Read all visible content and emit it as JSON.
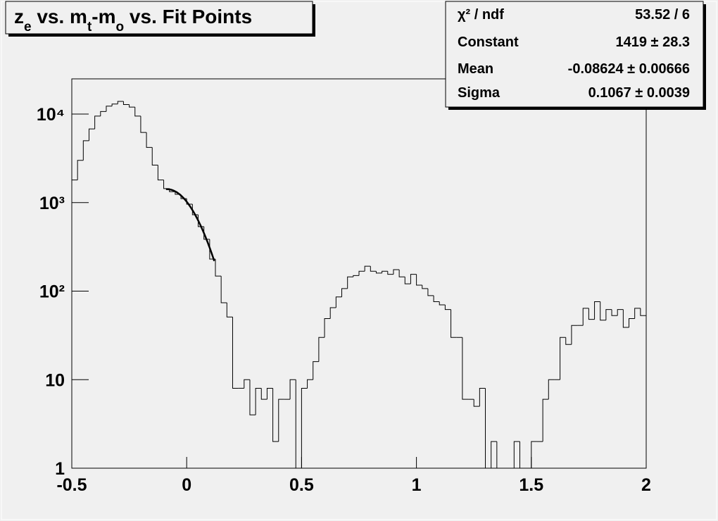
{
  "chart_data": {
    "type": "histogram",
    "title": [
      {
        "text": "z"
      },
      {
        "text": "e",
        "sub": true
      },
      {
        "text": " vs. m"
      },
      {
        "text": "t",
        "sub": true
      },
      {
        "text": "-m"
      },
      {
        "text": "o",
        "sub": true
      },
      {
        "text": " vs. Fit Points"
      }
    ],
    "bins": [
      -0.5,
      -0.475,
      -0.45,
      -0.425,
      -0.4,
      -0.375,
      -0.35,
      -0.325,
      -0.3,
      -0.275,
      -0.25,
      -0.225,
      -0.2,
      -0.175,
      -0.15,
      -0.125,
      -0.1,
      -0.075,
      -0.05,
      -0.025,
      0,
      0.025,
      0.05,
      0.075,
      0.1,
      0.125,
      0.15,
      0.175,
      0.2,
      0.225,
      0.25,
      0.275,
      0.3,
      0.325,
      0.35,
      0.375,
      0.4,
      0.425,
      0.45,
      0.475,
      0.5,
      0.525,
      0.55,
      0.575,
      0.6,
      0.625,
      0.65,
      0.675,
      0.7,
      0.725,
      0.75,
      0.775,
      0.8,
      0.825,
      0.85,
      0.875,
      0.9,
      0.925,
      0.95,
      0.975,
      1,
      1.025,
      1.05,
      1.075,
      1.1,
      1.125,
      1.15,
      1.175,
      1.2,
      1.225,
      1.25,
      1.275,
      1.3,
      1.325,
      1.35,
      1.375,
      1.4,
      1.425,
      1.45,
      1.475,
      1.5,
      1.525,
      1.55,
      1.575,
      1.6,
      1.625,
      1.65,
      1.675,
      1.7,
      1.725,
      1.75,
      1.775,
      1.8,
      1.825,
      1.85,
      1.875,
      1.9,
      1.925,
      1.95,
      1.975,
      2
    ],
    "values": [
      1800,
      3000,
      5000,
      6800,
      9500,
      10700,
      12300,
      13000,
      13900,
      12800,
      12000,
      9500,
      6200,
      4200,
      2650,
      1800,
      1440,
      1330,
      1240,
      1110,
      960,
      730,
      535,
      385,
      230,
      148,
      74,
      51,
      8,
      8,
      10,
      4,
      8,
      6,
      8,
      2,
      6,
      6,
      10,
      0,
      8,
      10,
      16,
      30,
      49,
      65,
      86,
      107,
      145,
      150,
      168,
      191,
      168,
      160,
      168,
      155,
      175,
      145,
      121,
      155,
      117,
      107,
      89,
      76,
      70,
      62,
      30,
      30,
      6,
      6,
      5,
      8,
      0,
      2,
      0,
      0,
      0,
      2,
      0,
      0,
      2,
      2,
      6,
      10,
      10,
      30,
      25,
      41,
      41,
      64,
      48,
      76,
      47,
      62,
      53,
      62,
      39,
      49,
      64,
      53
    ],
    "color": "#000000",
    "xlim": [
      -0.5,
      2
    ],
    "xticks": [
      -0.5,
      0,
      0.5,
      1,
      1.5,
      2
    ],
    "ylim": [
      1,
      25000
    ],
    "yticks": [
      1,
      10,
      {
        "value": 100,
        "label": "10²"
      },
      {
        "value": 1000,
        "label": "10³"
      },
      {
        "value": 10000,
        "label": "10⁴"
      }
    ],
    "log_y": true,
    "fit_range": [
      -0.09,
      0.12
    ],
    "stats": [
      {
        "name": "χ² / ndf",
        "label": "53.52 / 6"
      },
      {
        "name": "Constant",
        "value": 1419,
        "label": "1419 ± 28.3"
      },
      {
        "name": "Mean",
        "value": -0.08624,
        "label": "-0.08624 ± 0.00666"
      },
      {
        "name": "Sigma",
        "value": 0.1067,
        "label": "0.1067 ± 0.0039"
      }
    ]
  }
}
